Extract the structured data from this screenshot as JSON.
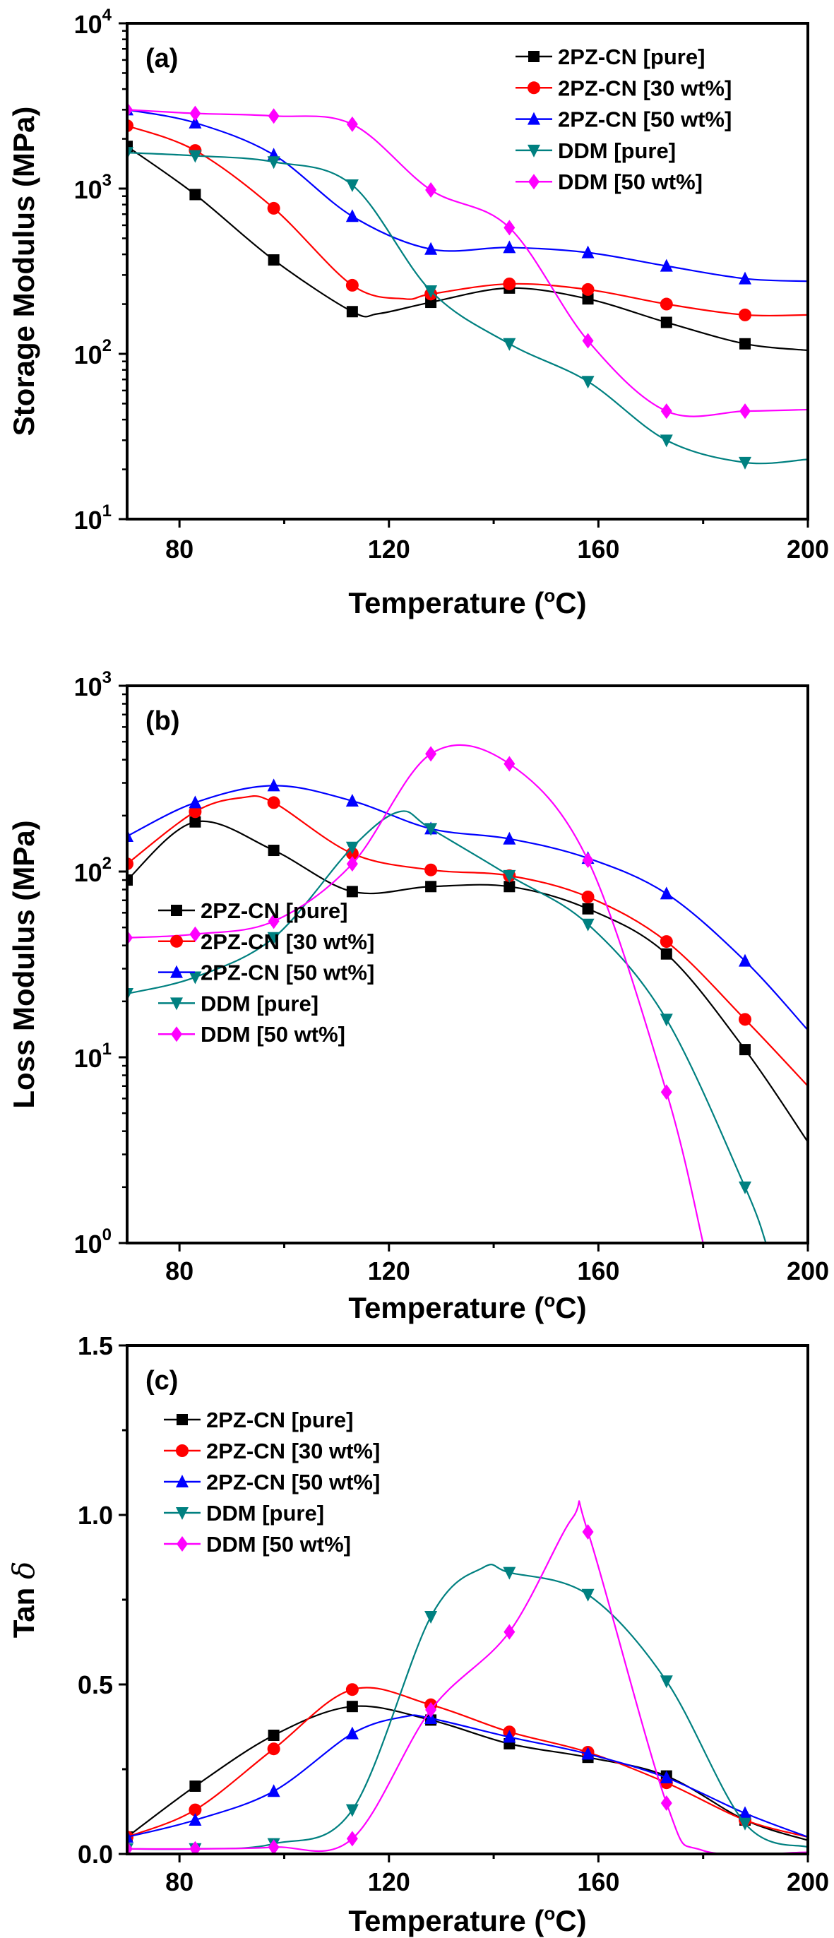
{
  "series_styles": [
    {
      "name": "2PZ-CN [pure]",
      "color": "#000000",
      "marker": "square"
    },
    {
      "name": "2PZ-CN [30 wt%]",
      "color": "#ff0000",
      "marker": "circle"
    },
    {
      "name": "2PZ-CN [50 wt%]",
      "color": "#0000ff",
      "marker": "triangle-up"
    },
    {
      "name": "DDM [pure]",
      "color": "#008080",
      "marker": "triangle-down"
    },
    {
      "name": "DDM [50 wt%]",
      "color": "#ff00ff",
      "marker": "diamond"
    }
  ],
  "chart_data": [
    {
      "type": "line",
      "panel_label": "(a)",
      "xlabel": "Temperature (",
      "xlabel_unit_sup": "o",
      "xlabel_unit": "C)",
      "ylabel": "Storage Modulus (MPa)",
      "xlim": [
        70,
        200
      ],
      "ylim": [
        10,
        10000
      ],
      "yscale": "log",
      "xticks": [
        "80",
        "120",
        "160",
        "200"
      ],
      "yticks": [
        {
          "base": "10",
          "exp": "1"
        },
        {
          "base": "10",
          "exp": "2"
        },
        {
          "base": "10",
          "exp": "3"
        },
        {
          "base": "10",
          "exp": "4"
        }
      ],
      "legend_position": "top-right",
      "series": [
        {
          "name": "2PZ-CN [pure]",
          "x": [
            70,
            83,
            98,
            113,
            118,
            128,
            143,
            158,
            173,
            188,
            200
          ],
          "y": [
            1800,
            920,
            370,
            180,
            175,
            205,
            250,
            215,
            155,
            115,
            105
          ]
        },
        {
          "name": "2PZ-CN [30 wt%]",
          "x": [
            70,
            83,
            98,
            113,
            123,
            128,
            143,
            158,
            173,
            188,
            200
          ],
          "y": [
            2400,
            1700,
            760,
            260,
            215,
            230,
            265,
            245,
            200,
            172,
            172
          ]
        },
        {
          "name": "2PZ-CN [50 wt%]",
          "x": [
            70,
            83,
            98,
            113,
            128,
            143,
            158,
            173,
            188,
            200
          ],
          "y": [
            3000,
            2500,
            1600,
            680,
            430,
            440,
            410,
            340,
            285,
            275
          ]
        },
        {
          "name": "DDM [pure]",
          "x": [
            70,
            83,
            98,
            113,
            128,
            143,
            158,
            173,
            188,
            200
          ],
          "y": [
            1650,
            1580,
            1450,
            1050,
            240,
            115,
            68,
            30,
            22,
            23
          ]
        },
        {
          "name": "DDM [50 wt%]",
          "x": [
            70,
            83,
            98,
            113,
            128,
            143,
            158,
            173,
            188,
            200
          ],
          "y": [
            3000,
            2850,
            2750,
            2450,
            980,
            580,
            120,
            45,
            45,
            46
          ]
        }
      ]
    },
    {
      "type": "line",
      "panel_label": "(b)",
      "xlabel": "Temperature (",
      "xlabel_unit_sup": "o",
      "xlabel_unit": "C)",
      "ylabel": "Loss Modulus (MPa)",
      "xlim": [
        70,
        200
      ],
      "ylim": [
        1,
        1000
      ],
      "yscale": "log",
      "xticks": [
        "80",
        "120",
        "160",
        "200"
      ],
      "yticks": [
        {
          "base": "10",
          "exp": "0"
        },
        {
          "base": "10",
          "exp": "1"
        },
        {
          "base": "10",
          "exp": "2"
        },
        {
          "base": "10",
          "exp": "3"
        }
      ],
      "legend_position": "bottom-left",
      "series": [
        {
          "name": "2PZ-CN [pure]",
          "x": [
            70,
            83,
            98,
            113,
            128,
            143,
            158,
            173,
            188,
            200
          ],
          "y": [
            90,
            185,
            130,
            78,
            83,
            83,
            63,
            36,
            11,
            3.5
          ]
        },
        {
          "name": "2PZ-CN [30 wt%]",
          "x": [
            70,
            83,
            92,
            98,
            113,
            128,
            143,
            158,
            173,
            188,
            200
          ],
          "y": [
            110,
            210,
            250,
            235,
            125,
            102,
            95,
            73,
            42,
            16,
            7
          ]
        },
        {
          "name": "2PZ-CN [50 wt%]",
          "x": [
            70,
            83,
            98,
            113,
            128,
            143,
            158,
            173,
            188,
            200
          ],
          "y": [
            155,
            235,
            290,
            240,
            170,
            150,
            118,
            76,
            33,
            14
          ]
        },
        {
          "name": "DDM [pure]",
          "x": [
            70,
            83,
            98,
            113,
            122,
            128,
            143,
            158,
            173,
            188,
            192
          ],
          "y": [
            22,
            27,
            44,
            135,
            210,
            170,
            95,
            52,
            16,
            2,
            1
          ]
        },
        {
          "name": "DDM [50 wt%]",
          "x": [
            70,
            83,
            98,
            113,
            128,
            143,
            158,
            173,
            180
          ],
          "y": [
            44,
            46,
            54,
            110,
            430,
            380,
            115,
            6.5,
            1
          ]
        }
      ]
    },
    {
      "type": "line",
      "panel_label": "(c)",
      "xlabel": "Temperature (",
      "xlabel_unit_sup": "o",
      "xlabel_unit": "C)",
      "ylabel": "Tan ",
      "ylabel_symbol": "δ",
      "xlim": [
        70,
        200
      ],
      "ylim": [
        0,
        1.5
      ],
      "yscale": "linear",
      "xticks": [
        "80",
        "120",
        "160",
        "200"
      ],
      "yticks": [
        "0.0",
        "0.5",
        "1.0",
        "1.5"
      ],
      "legend_position": "top-left",
      "series": [
        {
          "name": "2PZ-CN [pure]",
          "x": [
            70,
            83,
            98,
            113,
            128,
            143,
            158,
            173,
            188,
            200
          ],
          "y": [
            0.05,
            0.2,
            0.35,
            0.435,
            0.395,
            0.325,
            0.285,
            0.23,
            0.1,
            0.04
          ]
        },
        {
          "name": "2PZ-CN [30 wt%]",
          "x": [
            70,
            83,
            98,
            113,
            128,
            143,
            158,
            173,
            188,
            200
          ],
          "y": [
            0.05,
            0.13,
            0.31,
            0.485,
            0.44,
            0.36,
            0.3,
            0.21,
            0.1,
            0.05
          ]
        },
        {
          "name": "2PZ-CN [50 wt%]",
          "x": [
            70,
            83,
            98,
            113,
            123,
            128,
            143,
            158,
            173,
            188,
            200
          ],
          "y": [
            0.05,
            0.1,
            0.185,
            0.355,
            0.405,
            0.4,
            0.345,
            0.295,
            0.225,
            0.12,
            0.05
          ]
        },
        {
          "name": "DDM [pure]",
          "x": [
            70,
            83,
            98,
            113,
            128,
            138,
            143,
            158,
            173,
            188,
            200
          ],
          "y": [
            0.015,
            0.015,
            0.03,
            0.13,
            0.7,
            0.845,
            0.83,
            0.765,
            0.51,
            0.09,
            0.02
          ]
        },
        {
          "name": "DDM [50 wt%]",
          "x": [
            70,
            83,
            98,
            113,
            128,
            143,
            155,
            158,
            173,
            180,
            200
          ],
          "y": [
            0.015,
            0.015,
            0.02,
            0.045,
            0.425,
            0.655,
            0.99,
            0.95,
            0.15,
            0.01,
            0.005
          ]
        }
      ]
    }
  ]
}
